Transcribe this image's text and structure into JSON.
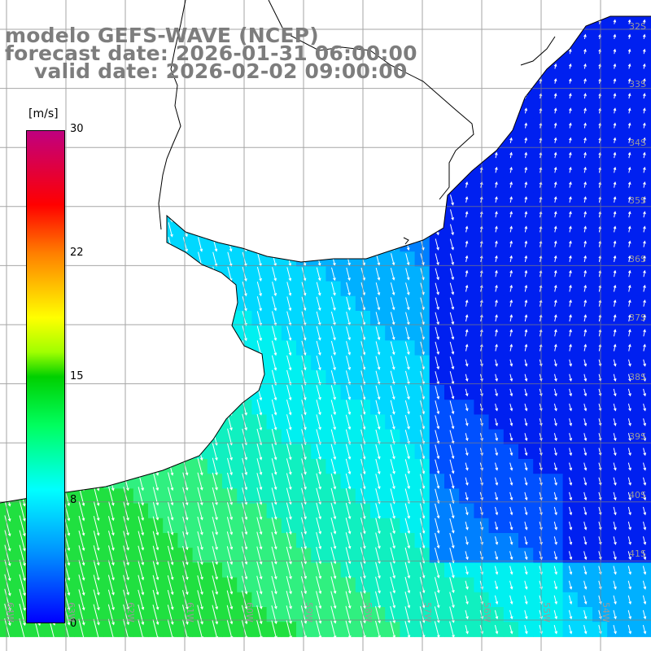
{
  "title": {
    "line1": "modelo GEFS-WAVE (NCEP)",
    "line2": "forecast date: 2026-01-31 06:00:00",
    "line3": "valid date: 2026-02-02 09:00:00"
  },
  "colorbar": {
    "unit": "[m/s]",
    "min": 0,
    "max": 30,
    "ticks": [
      "30",
      "22",
      "15",
      "8",
      "0"
    ],
    "colors": [
      "#0000ff",
      "#00c0ff",
      "#00ffff",
      "#00ff40",
      "#00c000",
      "#ffff00",
      "#ff8000",
      "#ff0000",
      "#c00080"
    ]
  },
  "grid": {
    "lat_labels": [
      "32S",
      "33S",
      "34S",
      "35S",
      "36S",
      "37S",
      "38S",
      "39S",
      "40S",
      "41S"
    ],
    "lon_labels": [
      "64W",
      "63W",
      "62W",
      "61W",
      "60W",
      "59W",
      "58W",
      "57W",
      "56W",
      "55W",
      "54W"
    ]
  },
  "field": {
    "variable": "wind speed",
    "units": "m/s",
    "arrows": "wind direction"
  },
  "colors": {
    "title": "#7d7d7d",
    "land": "#ffffff",
    "grid": "#808080",
    "coastline": "#000000",
    "arrow": "#ffffff"
  }
}
